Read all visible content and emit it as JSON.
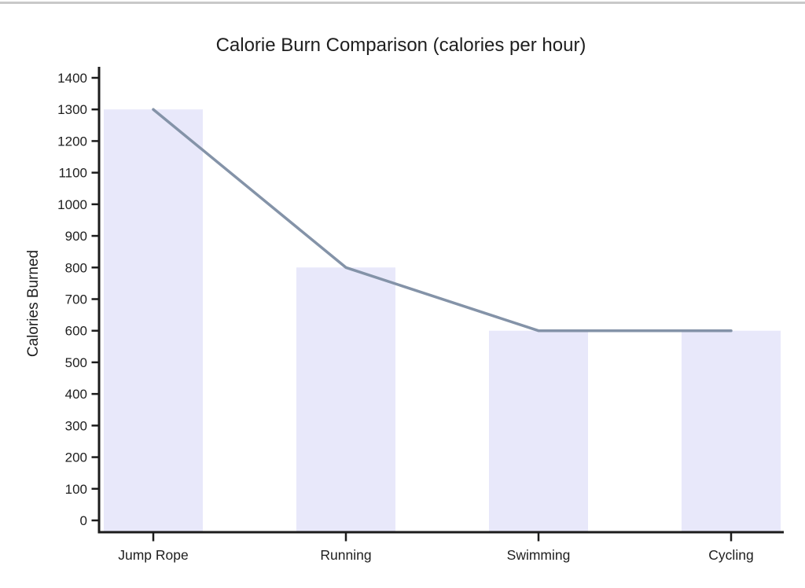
{
  "window": {
    "top_border_color": "#c9c9c9",
    "background": "#ffffff"
  },
  "chart_data": {
    "type": "bar",
    "overlay": "line",
    "title": "Calorie Burn Comparison (calories per hour)",
    "xlabel": "",
    "ylabel": "Calories Burned",
    "categories": [
      "Jump Rope",
      "Running",
      "Swimming",
      "Cycling"
    ],
    "series": [
      {
        "name": "calories-bars",
        "type": "bar",
        "values": [
          1300,
          800,
          600,
          600
        ]
      },
      {
        "name": "calories-line",
        "type": "line",
        "values": [
          1300,
          800,
          600,
          600
        ]
      }
    ],
    "ylim": [
      0,
      1400
    ],
    "ytick_step": 100,
    "ytick_labels": [
      "0",
      "100",
      "200",
      "300",
      "400",
      "500",
      "600",
      "700",
      "800",
      "900",
      "1000",
      "1100",
      "1200",
      "1300",
      "1400"
    ],
    "grid": false,
    "legend_position": "none",
    "colors": {
      "bar_fill": "#e8e8fa",
      "line": "#8493a8",
      "axis": "#1c1c1c",
      "text": "#1e1e1e"
    }
  }
}
